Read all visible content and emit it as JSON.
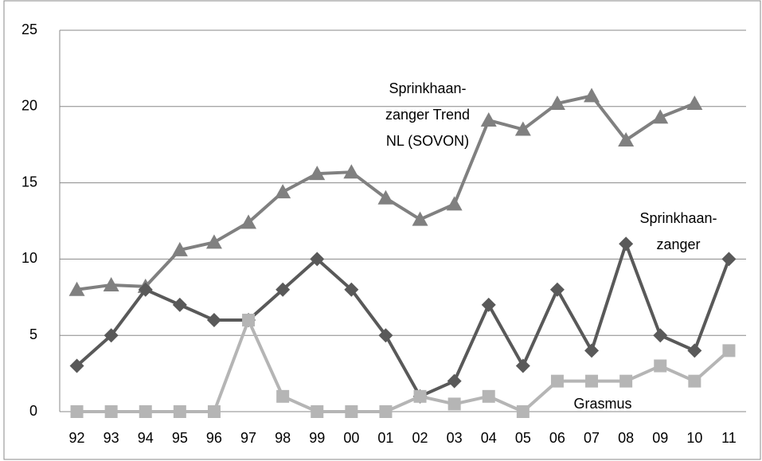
{
  "chart_data": {
    "type": "line",
    "categories": [
      "92",
      "93",
      "94",
      "95",
      "96",
      "97",
      "98",
      "99",
      "00",
      "01",
      "02",
      "03",
      "04",
      "05",
      "06",
      "07",
      "08",
      "09",
      "10",
      "11"
    ],
    "ylim": [
      0,
      25
    ],
    "yticks": [
      0,
      5,
      10,
      15,
      20,
      25
    ],
    "grid": true,
    "series": [
      {
        "label": [
          "Sprinkhaan-",
          "zanger Trend",
          "NL (SOVON)"
        ],
        "color": "#808080",
        "marker": "triangle",
        "values": [
          8,
          8.3,
          8.2,
          10.6,
          11.1,
          12.4,
          14.4,
          15.6,
          15.7,
          14,
          12.6,
          13.6,
          19.1,
          18.5,
          20.2,
          20.7,
          17.8,
          19.3,
          20.2,
          null
        ]
      },
      {
        "label": [
          "Sprinkhaan-",
          "zanger"
        ],
        "color": "#595959",
        "marker": "diamond",
        "values": [
          3,
          5,
          8,
          7,
          6,
          6,
          8,
          10,
          8,
          5,
          1,
          2,
          7,
          3,
          8,
          4,
          11,
          5,
          4,
          10
        ]
      },
      {
        "label": [
          "Grasmus"
        ],
        "color": "#b5b5b5",
        "marker": "square",
        "values": [
          0,
          0,
          0,
          0,
          0,
          6,
          1,
          0,
          0,
          0,
          1,
          0.5,
          1,
          0,
          2,
          2,
          2,
          3,
          2,
          4
        ]
      }
    ]
  }
}
